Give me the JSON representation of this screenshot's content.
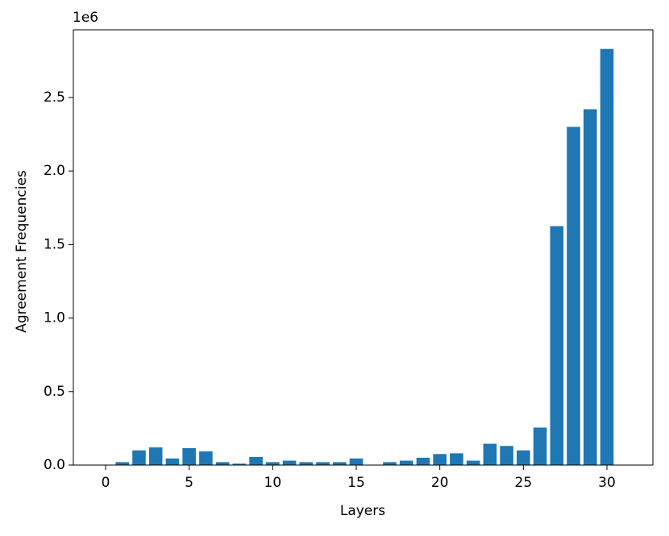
{
  "chart_data": {
    "type": "bar",
    "xlabel": "Layers",
    "ylabel": "Agreement Frequencies",
    "offset_text": "1e6",
    "x": [
      0,
      1,
      2,
      3,
      4,
      5,
      6,
      7,
      8,
      9,
      10,
      11,
      12,
      13,
      14,
      15,
      16,
      17,
      18,
      19,
      20,
      21,
      22,
      23,
      24,
      25,
      26,
      27,
      28,
      29,
      30
    ],
    "values": [
      0,
      20000,
      100000,
      120000,
      45000,
      115000,
      93000,
      20000,
      10000,
      55000,
      20000,
      30000,
      20000,
      20000,
      20000,
      45000,
      0,
      20000,
      30000,
      50000,
      75000,
      80000,
      30000,
      145000,
      130000,
      100000,
      255000,
      1625000,
      2300000,
      2420000,
      2830000
    ],
    "color": "#1f77b4",
    "xlim": [
      -1.93,
      32.75
    ],
    "xticks": [
      0,
      5,
      10,
      15,
      20,
      25,
      30
    ],
    "ylim": [
      0,
      2960000
    ],
    "yticks": [
      {
        "value": 0,
        "label": "0.0"
      },
      {
        "value": 500000,
        "label": "0.5"
      },
      {
        "value": 1000000,
        "label": "1.0"
      },
      {
        "value": 1500000,
        "label": "1.5"
      },
      {
        "value": 2000000,
        "label": "2.0"
      },
      {
        "value": 2500000,
        "label": "2.5"
      }
    ],
    "grid": false
  }
}
